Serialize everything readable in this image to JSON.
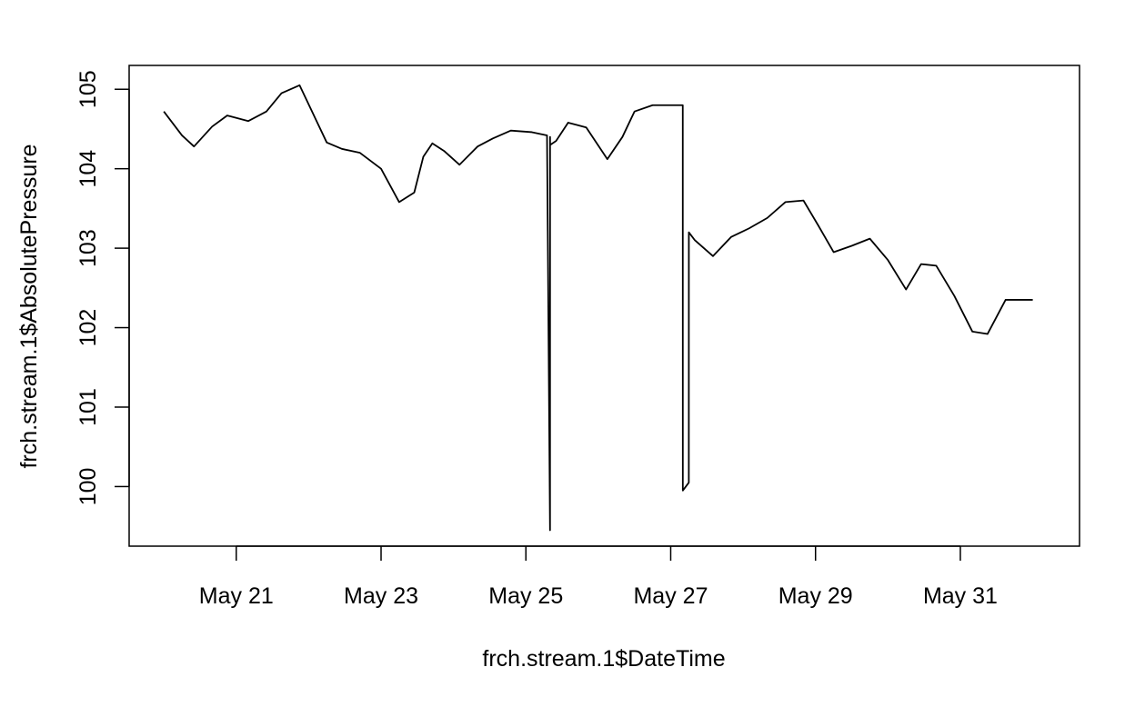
{
  "chart_data": {
    "type": "line",
    "title": "",
    "xlabel": "frch.stream.1$DateTime",
    "ylabel": "frch.stream.1$AbsolutePressure",
    "xlim": [
      "2019-05-19T12:30",
      "2019-06-01T15:30"
    ],
    "ylim": [
      99.25,
      105.3
    ],
    "x_ticks": [
      {
        "value": "2019-05-21",
        "label": "May 21"
      },
      {
        "value": "2019-05-23",
        "label": "May 23"
      },
      {
        "value": "2019-05-25",
        "label": "May 25"
      },
      {
        "value": "2019-05-27",
        "label": "May 27"
      },
      {
        "value": "2019-05-29",
        "label": "May 29"
      },
      {
        "value": "2019-05-31",
        "label": "May 31"
      }
    ],
    "y_ticks": [
      {
        "value": 100,
        "label": "100"
      },
      {
        "value": 101,
        "label": "101"
      },
      {
        "value": 102,
        "label": "102"
      },
      {
        "value": 103,
        "label": "103"
      },
      {
        "value": 104,
        "label": "104"
      },
      {
        "value": 105,
        "label": "105"
      }
    ],
    "grid": false,
    "legend": "none",
    "series": [
      {
        "color": "#000000",
        "x": [
          "2019-05-20T00:00",
          "2019-05-20T06:00",
          "2019-05-20T10:00",
          "2019-05-20T16:00",
          "2019-05-20T21:00",
          "2019-05-21T04:00",
          "2019-05-21T10:00",
          "2019-05-21T15:00",
          "2019-05-21T21:00",
          "2019-05-22T02:00",
          "2019-05-22T06:00",
          "2019-05-22T11:00",
          "2019-05-22T17:00",
          "2019-05-23T00:00",
          "2019-05-23T06:00",
          "2019-05-23T11:00",
          "2019-05-23T14:00",
          "2019-05-23T17:00",
          "2019-05-23T21:00",
          "2019-05-24T02:00",
          "2019-05-24T08:00",
          "2019-05-24T13:00",
          "2019-05-24T19:00",
          "2019-05-25T02:00",
          "2019-05-25T07:00",
          "2019-05-25T08:00",
          "2019-05-25T08:01",
          "2019-05-25T08:02",
          "2019-05-25T10:00",
          "2019-05-25T14:00",
          "2019-05-25T20:00",
          "2019-05-26T03:00",
          "2019-05-26T08:00",
          "2019-05-26T12:00",
          "2019-05-26T18:00",
          "2019-05-26T23:00",
          "2019-05-27T04:00",
          "2019-05-27T04:01",
          "2019-05-27T06:00",
          "2019-05-27T06:01",
          "2019-05-27T08:00",
          "2019-05-27T14:00",
          "2019-05-27T20:00",
          "2019-05-28T02:00",
          "2019-05-28T08:00",
          "2019-05-28T14:00",
          "2019-05-28T20:00",
          "2019-05-29T01:00",
          "2019-05-29T06:00",
          "2019-05-29T12:00",
          "2019-05-29T18:00",
          "2019-05-30T00:00",
          "2019-05-30T06:00",
          "2019-05-30T11:00",
          "2019-05-30T16:00",
          "2019-05-30T22:00",
          "2019-05-31T04:00",
          "2019-05-31T09:00",
          "2019-05-31T15:00",
          "2019-05-31T20:00",
          "2019-06-01T00:00"
        ],
        "y": [
          104.72,
          104.42,
          104.28,
          104.53,
          104.67,
          104.6,
          104.72,
          104.95,
          105.05,
          104.65,
          104.33,
          104.25,
          104.2,
          104.0,
          103.58,
          103.7,
          104.15,
          104.32,
          104.22,
          104.05,
          104.28,
          104.38,
          104.48,
          104.46,
          104.42,
          99.45,
          104.4,
          104.3,
          104.35,
          104.58,
          104.52,
          104.12,
          104.4,
          104.72,
          104.8,
          104.8,
          104.8,
          99.95,
          100.05,
          103.2,
          103.1,
          102.9,
          103.14,
          103.25,
          103.38,
          103.58,
          103.6,
          103.28,
          102.95,
          103.03,
          103.12,
          102.85,
          102.48,
          102.8,
          102.78,
          102.4,
          101.95,
          101.92,
          102.35,
          102.35,
          102.35
        ]
      }
    ]
  }
}
